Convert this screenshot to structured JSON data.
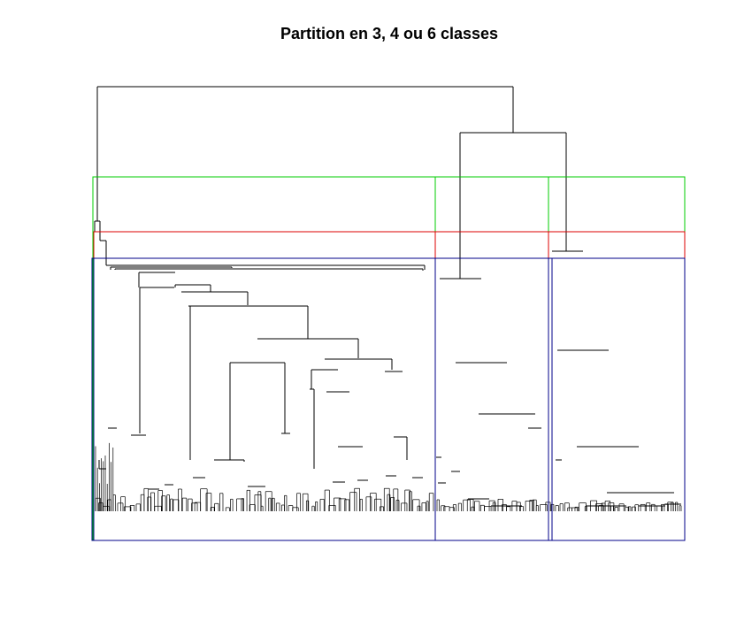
{
  "title": "Partition en 3, 4 ou 6 classes",
  "diagram": {
    "type": "dendrogram",
    "axes_shown": false,
    "partitions": [
      {
        "classes": 3,
        "color": "#00cc00"
      },
      {
        "classes": 4,
        "color": "#dd0000"
      },
      {
        "classes": 6,
        "color": "#000088"
      }
    ],
    "line_color": "#000000"
  }
}
